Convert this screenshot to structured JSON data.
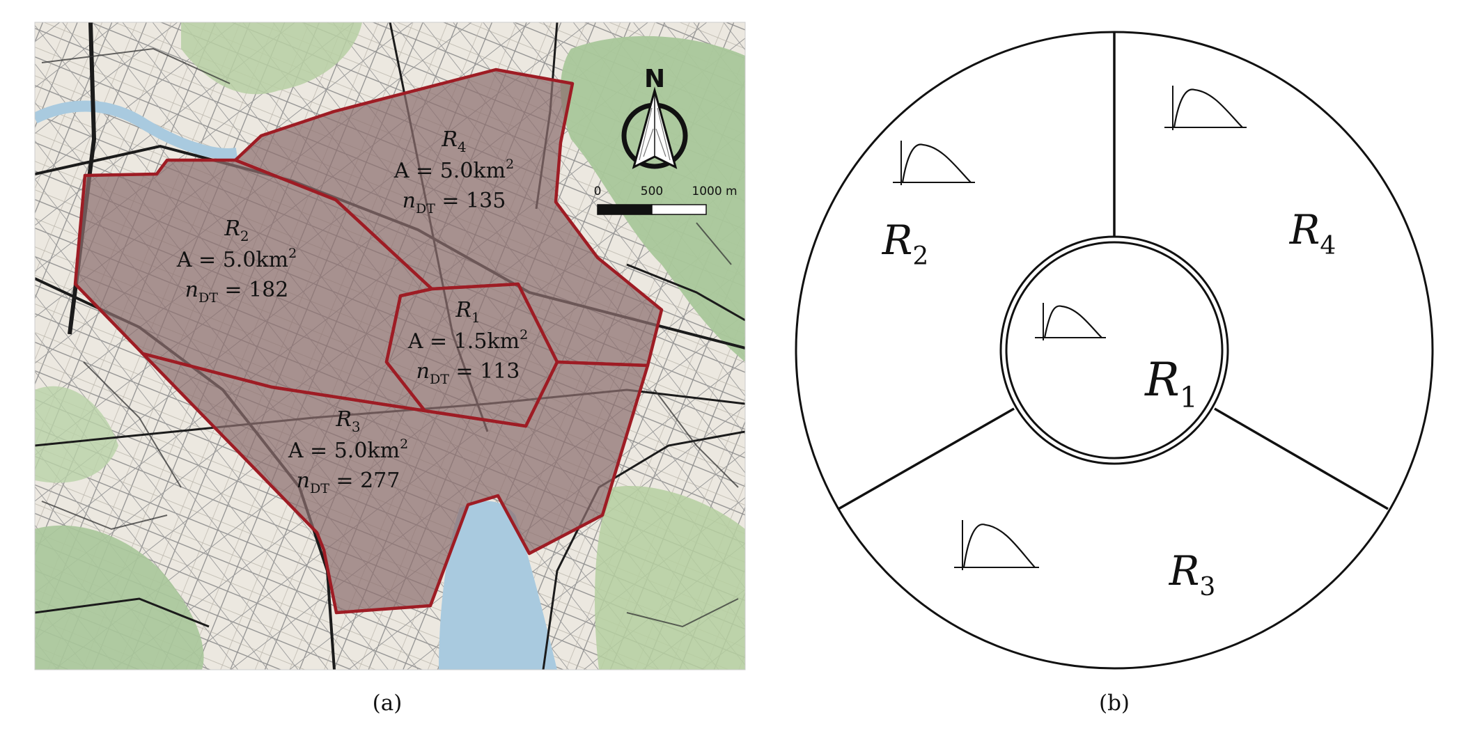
{
  "panel_a": {
    "caption": "(a)",
    "compass_letter": "N",
    "scale_bar": {
      "ticks": [
        "0",
        "500",
        "1000 m"
      ]
    },
    "regions": [
      {
        "id": "R1",
        "name": "R",
        "sub": "1",
        "area_prefix": "A = 1.5km",
        "area_sup": "2",
        "count_prefix": "n",
        "count_sub": "DT",
        "count_value": "= 113"
      },
      {
        "id": "R2",
        "name": "R",
        "sub": "2",
        "area_prefix": "A = 5.0km",
        "area_sup": "2",
        "count_prefix": "n",
        "count_sub": "DT",
        "count_value": "= 182"
      },
      {
        "id": "R3",
        "name": "R",
        "sub": "3",
        "area_prefix": "A = 5.0km",
        "area_sup": "2",
        "count_prefix": "n",
        "count_sub": "DT",
        "count_value": "= 277"
      },
      {
        "id": "R4",
        "name": "R",
        "sub": "4",
        "area_prefix": "A = 5.0km",
        "area_sup": "2",
        "count_prefix": "n",
        "count_sub": "DT",
        "count_value": "= 135"
      }
    ],
    "colors": {
      "water": "#a9cadf",
      "region_fill": "#8c6f6f",
      "region_border": "#9e1c24",
      "park": "#a9c79a",
      "street": "#222222"
    }
  },
  "panel_b": {
    "caption": "(b)",
    "regions": [
      {
        "id": "R1",
        "name": "R",
        "sub": "1"
      },
      {
        "id": "R2",
        "name": "R",
        "sub": "2"
      },
      {
        "id": "R3",
        "name": "R",
        "sub": "3"
      },
      {
        "id": "R4",
        "name": "R",
        "sub": "4"
      }
    ],
    "curve_icon": "distribution-curve-icon"
  }
}
